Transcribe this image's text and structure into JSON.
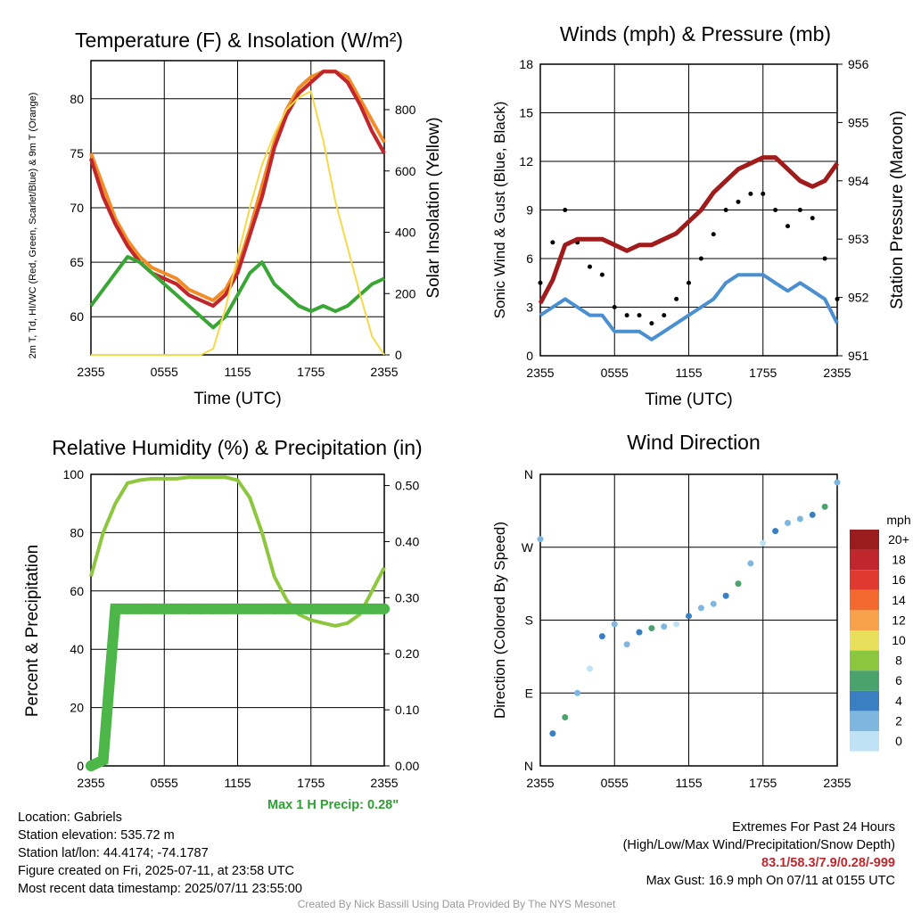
{
  "chart_data": [
    {
      "type": "line",
      "title": "Temperature (F) & Insolation (W/m²)",
      "xlabel": "Time (UTC)",
      "ylabel": "2m T, Td, HI/WC (Red, Green, Scarlet/Blue) & 9m T (Orange)",
      "ylabel_right": "Solar Insolation (Yellow)",
      "x_ticks": [
        "2355",
        "0555",
        "1155",
        "1755",
        "2355"
      ],
      "y_ticks": [
        60,
        65,
        70,
        75,
        80
      ],
      "y2_ticks": [
        0,
        200,
        400,
        600,
        800
      ],
      "ylim": [
        56.5,
        83.5
      ],
      "y2lim": [
        0,
        960
      ],
      "x_hours": [
        0,
        1,
        2,
        3,
        4,
        5,
        6,
        7,
        8,
        9,
        10,
        11,
        12,
        13,
        14,
        15,
        16,
        17,
        18,
        19,
        20,
        21,
        22,
        23,
        24
      ],
      "series": [
        {
          "name": "2m T",
          "color": "#d62728",
          "values": [
            74.5,
            71,
            68.5,
            66.5,
            65,
            64,
            63.5,
            63,
            62,
            61.5,
            61,
            62,
            64,
            67.5,
            71,
            75.5,
            78.5,
            80.5,
            81.5,
            82.5,
            82.5,
            81.5,
            79.5,
            77,
            75
          ]
        },
        {
          "name": "9m T",
          "color": "#f28c28",
          "values": [
            75,
            72,
            69,
            67,
            65.5,
            64.5,
            64,
            63.5,
            62.5,
            62,
            61.5,
            62.5,
            64.5,
            68,
            72,
            76,
            79,
            81,
            82,
            82.5,
            82.5,
            82,
            80,
            78,
            76
          ]
        },
        {
          "name": "HI/WC",
          "color": "#c0272d",
          "values": [
            74.5,
            71,
            68.5,
            66.5,
            65,
            64,
            63.5,
            63,
            62,
            61.5,
            61,
            62,
            64,
            67.5,
            71,
            75.5,
            78.5,
            80.5,
            81.5,
            82.5,
            82.5,
            81.5,
            79.5,
            77,
            75
          ]
        },
        {
          "name": "Td",
          "color": "#3aa635",
          "values": [
            61,
            62.5,
            64,
            65.5,
            65,
            64,
            63,
            62,
            61,
            60,
            59,
            60,
            62,
            64,
            65,
            63,
            62,
            61,
            60.5,
            61,
            60.5,
            61,
            62,
            63,
            63.5
          ]
        },
        {
          "name": "Solar Insolation",
          "axis": "right",
          "color": "#f5d94a",
          "values": [
            0,
            0,
            0,
            0,
            0,
            0,
            0,
            0,
            0,
            0,
            20,
            150,
            320,
            480,
            620,
            720,
            800,
            840,
            860,
            700,
            500,
            350,
            200,
            60,
            0
          ]
        }
      ]
    },
    {
      "type": "scatter",
      "title": "Winds (mph) & Pressure (mb)",
      "xlabel": "Time (UTC)",
      "ylabel": "Sonic Wind & Gust (Blue, Black)",
      "ylabel_right": "Station Pressure (Maroon)",
      "x_ticks": [
        "2355",
        "0555",
        "1155",
        "1755",
        "2355"
      ],
      "y_ticks": [
        0,
        3,
        6,
        9,
        12,
        15,
        18
      ],
      "y2_ticks": [
        951,
        952,
        953,
        954,
        955,
        956
      ],
      "ylim": [
        0,
        18
      ],
      "y2lim": [
        951,
        956
      ],
      "x_hours": [
        0,
        1,
        2,
        3,
        4,
        5,
        6,
        7,
        8,
        9,
        10,
        11,
        12,
        13,
        14,
        15,
        16,
        17,
        18,
        19,
        20,
        21,
        22,
        23,
        24
      ],
      "series": [
        {
          "name": "Sonic Wind",
          "color": "#4a90d0",
          "values": [
            2.5,
            3,
            3.5,
            3,
            2.5,
            2.5,
            1.5,
            1.5,
            1.5,
            1,
            1.5,
            2,
            2.5,
            3,
            3.5,
            4.5,
            5,
            5,
            5,
            4.5,
            4,
            4.5,
            4,
            3.5,
            2
          ]
        },
        {
          "name": "Gust",
          "color": "#000000",
          "values": [
            4.5,
            7,
            9,
            7,
            5.5,
            5,
            3,
            2.5,
            2.5,
            2,
            2.5,
            3.5,
            4.5,
            6,
            7.5,
            9,
            9.5,
            10,
            10,
            9,
            8,
            9,
            8.5,
            6,
            3.5
          ]
        },
        {
          "name": "Station Pressure",
          "axis": "right",
          "color": "#a01c1c",
          "values": [
            951.9,
            952.3,
            952.9,
            953.0,
            953.0,
            953.0,
            952.9,
            952.8,
            952.9,
            952.9,
            953.0,
            953.1,
            953.3,
            953.5,
            953.8,
            954.0,
            954.2,
            954.3,
            954.4,
            954.4,
            954.2,
            954.0,
            953.9,
            954.0,
            954.3
          ]
        }
      ]
    },
    {
      "type": "line",
      "title": "Relative Humidity (%) & Precipitation (in)",
      "xlabel": "",
      "ylabel": "Percent & Precipitation",
      "x_ticks": [
        "2355",
        "0555",
        "1155",
        "1755",
        "2355"
      ],
      "y_ticks": [
        0,
        20,
        40,
        60,
        80,
        100
      ],
      "y2_ticks": [
        "0.00",
        "0.10",
        "0.20",
        "0.30",
        "0.40",
        "0.50"
      ],
      "ylim": [
        0,
        100
      ],
      "y2lim": [
        0,
        0.52
      ],
      "x_hours": [
        0,
        1,
        2,
        3,
        4,
        5,
        6,
        7,
        8,
        9,
        10,
        11,
        12,
        13,
        14,
        15,
        16,
        17,
        18,
        19,
        20,
        21,
        22,
        23,
        24
      ],
      "series": [
        {
          "name": "Relative Humidity",
          "color": "#8dc63f",
          "values": [
            65,
            80,
            90,
            97,
            98,
            98.5,
            98.5,
            98.5,
            99,
            99,
            99,
            99,
            98,
            92,
            80,
            65,
            57,
            52,
            50,
            49,
            48,
            49,
            52,
            60,
            68
          ]
        },
        {
          "name": "Precipitation",
          "axis": "right",
          "color": "#4cb648",
          "values": [
            0,
            0.01,
            0.28,
            0.28,
            0.28,
            0.28,
            0.28,
            0.28,
            0.28,
            0.28,
            0.28,
            0.28,
            0.28,
            0.28,
            0.28,
            0.28,
            0.28,
            0.28,
            0.28,
            0.28,
            0.28,
            0.28,
            0.28,
            0.28,
            0.28
          ]
        }
      ]
    },
    {
      "type": "scatter",
      "title": "Wind Direction",
      "xlabel": "",
      "ylabel": "Direction (Colored By Speed)",
      "x_ticks": [
        "2355",
        "0555",
        "1155",
        "1755",
        "2355"
      ],
      "y_ticks": [
        "N",
        "E",
        "S",
        "W",
        "N"
      ],
      "ylim": [
        0,
        360
      ],
      "colorbar_unit": "mph",
      "colorbar_labels": [
        "20+",
        "18",
        "16",
        "14",
        "12",
        "10",
        "8",
        "6",
        "4",
        "2",
        "0"
      ],
      "colorbar_colors": [
        "#9b1c1c",
        "#c0272d",
        "#e03a30",
        "#f26a2e",
        "#f7a24a",
        "#e8e05a",
        "#8cc63f",
        "#4aa36a",
        "#3a7fc1",
        "#7fb6e0",
        "#bfe3f5"
      ],
      "x_hours": [
        0,
        1,
        2,
        3,
        4,
        5,
        6,
        7,
        8,
        9,
        10,
        11,
        12,
        13,
        14,
        15,
        16,
        17,
        18,
        19,
        20,
        21,
        22,
        23,
        24
      ],
      "values": [
        280,
        40,
        60,
        90,
        120,
        160,
        175,
        150,
        165,
        170,
        172,
        175,
        185,
        195,
        200,
        210,
        225,
        250,
        275,
        290,
        300,
        305,
        310,
        320,
        350
      ]
    }
  ],
  "precip_note": "Max 1 H Precip: 0.28\"",
  "info": {
    "location": "Location: Gabriels",
    "elevation": "Station elevation: 535.72 m",
    "latlon": "Station lat/lon: 44.4174; -74.1787",
    "created": "Figure created on Fri, 2025-07-11, at 23:58 UTC",
    "recent": "Most recent data timestamp: 2025/07/11 23:55:00"
  },
  "extremes": {
    "title": "Extremes For Past 24 Hours",
    "subtitle": "(High/Low/Max Wind/Precipitation/Snow Depth)",
    "values": "83.1/58.3/7.9/0.28/-999",
    "gust": "Max Gust: 16.9 mph On 07/11 at 0155 UTC"
  },
  "credit": "Created By Nick Bassill Using Data Provided By The NYS Mesonet"
}
